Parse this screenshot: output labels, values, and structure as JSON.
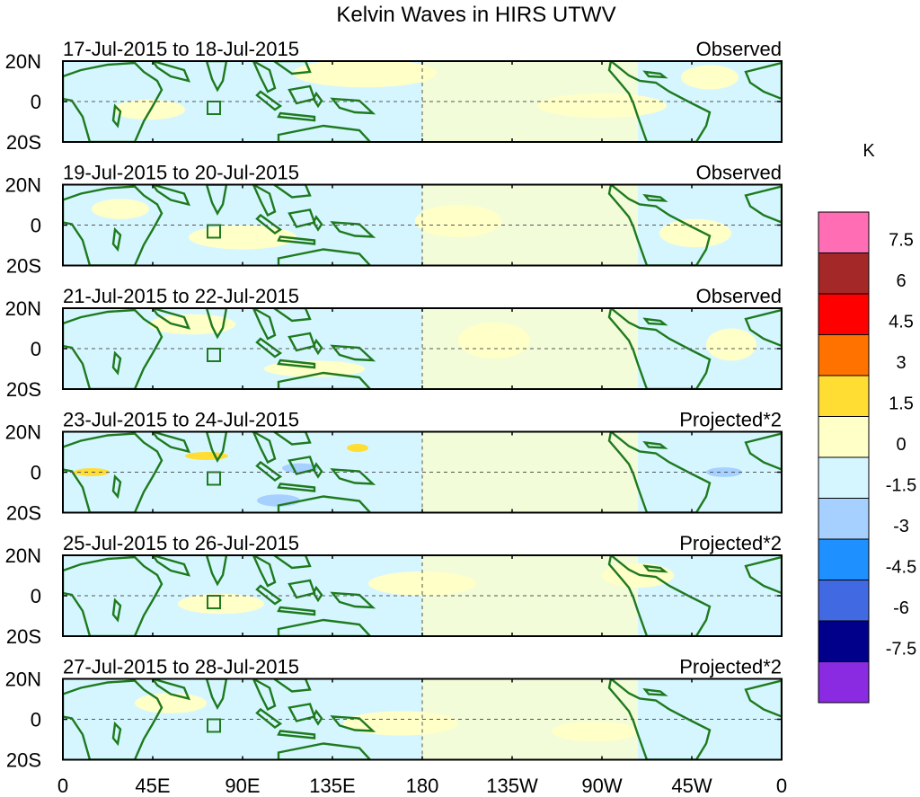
{
  "title": "Kelvin Waves in HIRS UTWV",
  "colorbar": {
    "unit": "K",
    "tick_labels": [
      "7.5",
      "6",
      "4.5",
      "3",
      "1.5",
      "0",
      "-1.5",
      "-3",
      "-4.5",
      "-6",
      "-7.5"
    ],
    "colors": [
      "#ff6eb4",
      "#a52828",
      "#ff0000",
      "#ff7200",
      "#ffdd33",
      "#ffffc8",
      "#d6f6ff",
      "#a6d0ff",
      "#1e90ff",
      "#4169e1",
      "#00008b",
      "#8a2be2"
    ]
  },
  "axes": {
    "lon_labels": [
      "0",
      "45E",
      "90E",
      "135E",
      "180",
      "135W",
      "90W",
      "45W",
      "0"
    ],
    "lat_labels": [
      "20N",
      "0",
      "20S"
    ]
  },
  "panels": [
    {
      "dates": "17-Jul-2015 to 18-Jul-2015",
      "tag": "Observed"
    },
    {
      "dates": "19-Jul-2015 to 20-Jul-2015",
      "tag": "Observed"
    },
    {
      "dates": "21-Jul-2015 to 22-Jul-2015",
      "tag": "Observed"
    },
    {
      "dates": "23-Jul-2015 to 24-Jul-2015",
      "tag": "Projected*2"
    },
    {
      "dates": "25-Jul-2015 to 26-Jul-2015",
      "tag": "Projected*2"
    },
    {
      "dates": "27-Jul-2015 to 28-Jul-2015",
      "tag": "Projected*2"
    }
  ],
  "colors": {
    "coast": "#1e7a1e",
    "panel_frame": "#000000",
    "zero_line": "#555555"
  }
}
